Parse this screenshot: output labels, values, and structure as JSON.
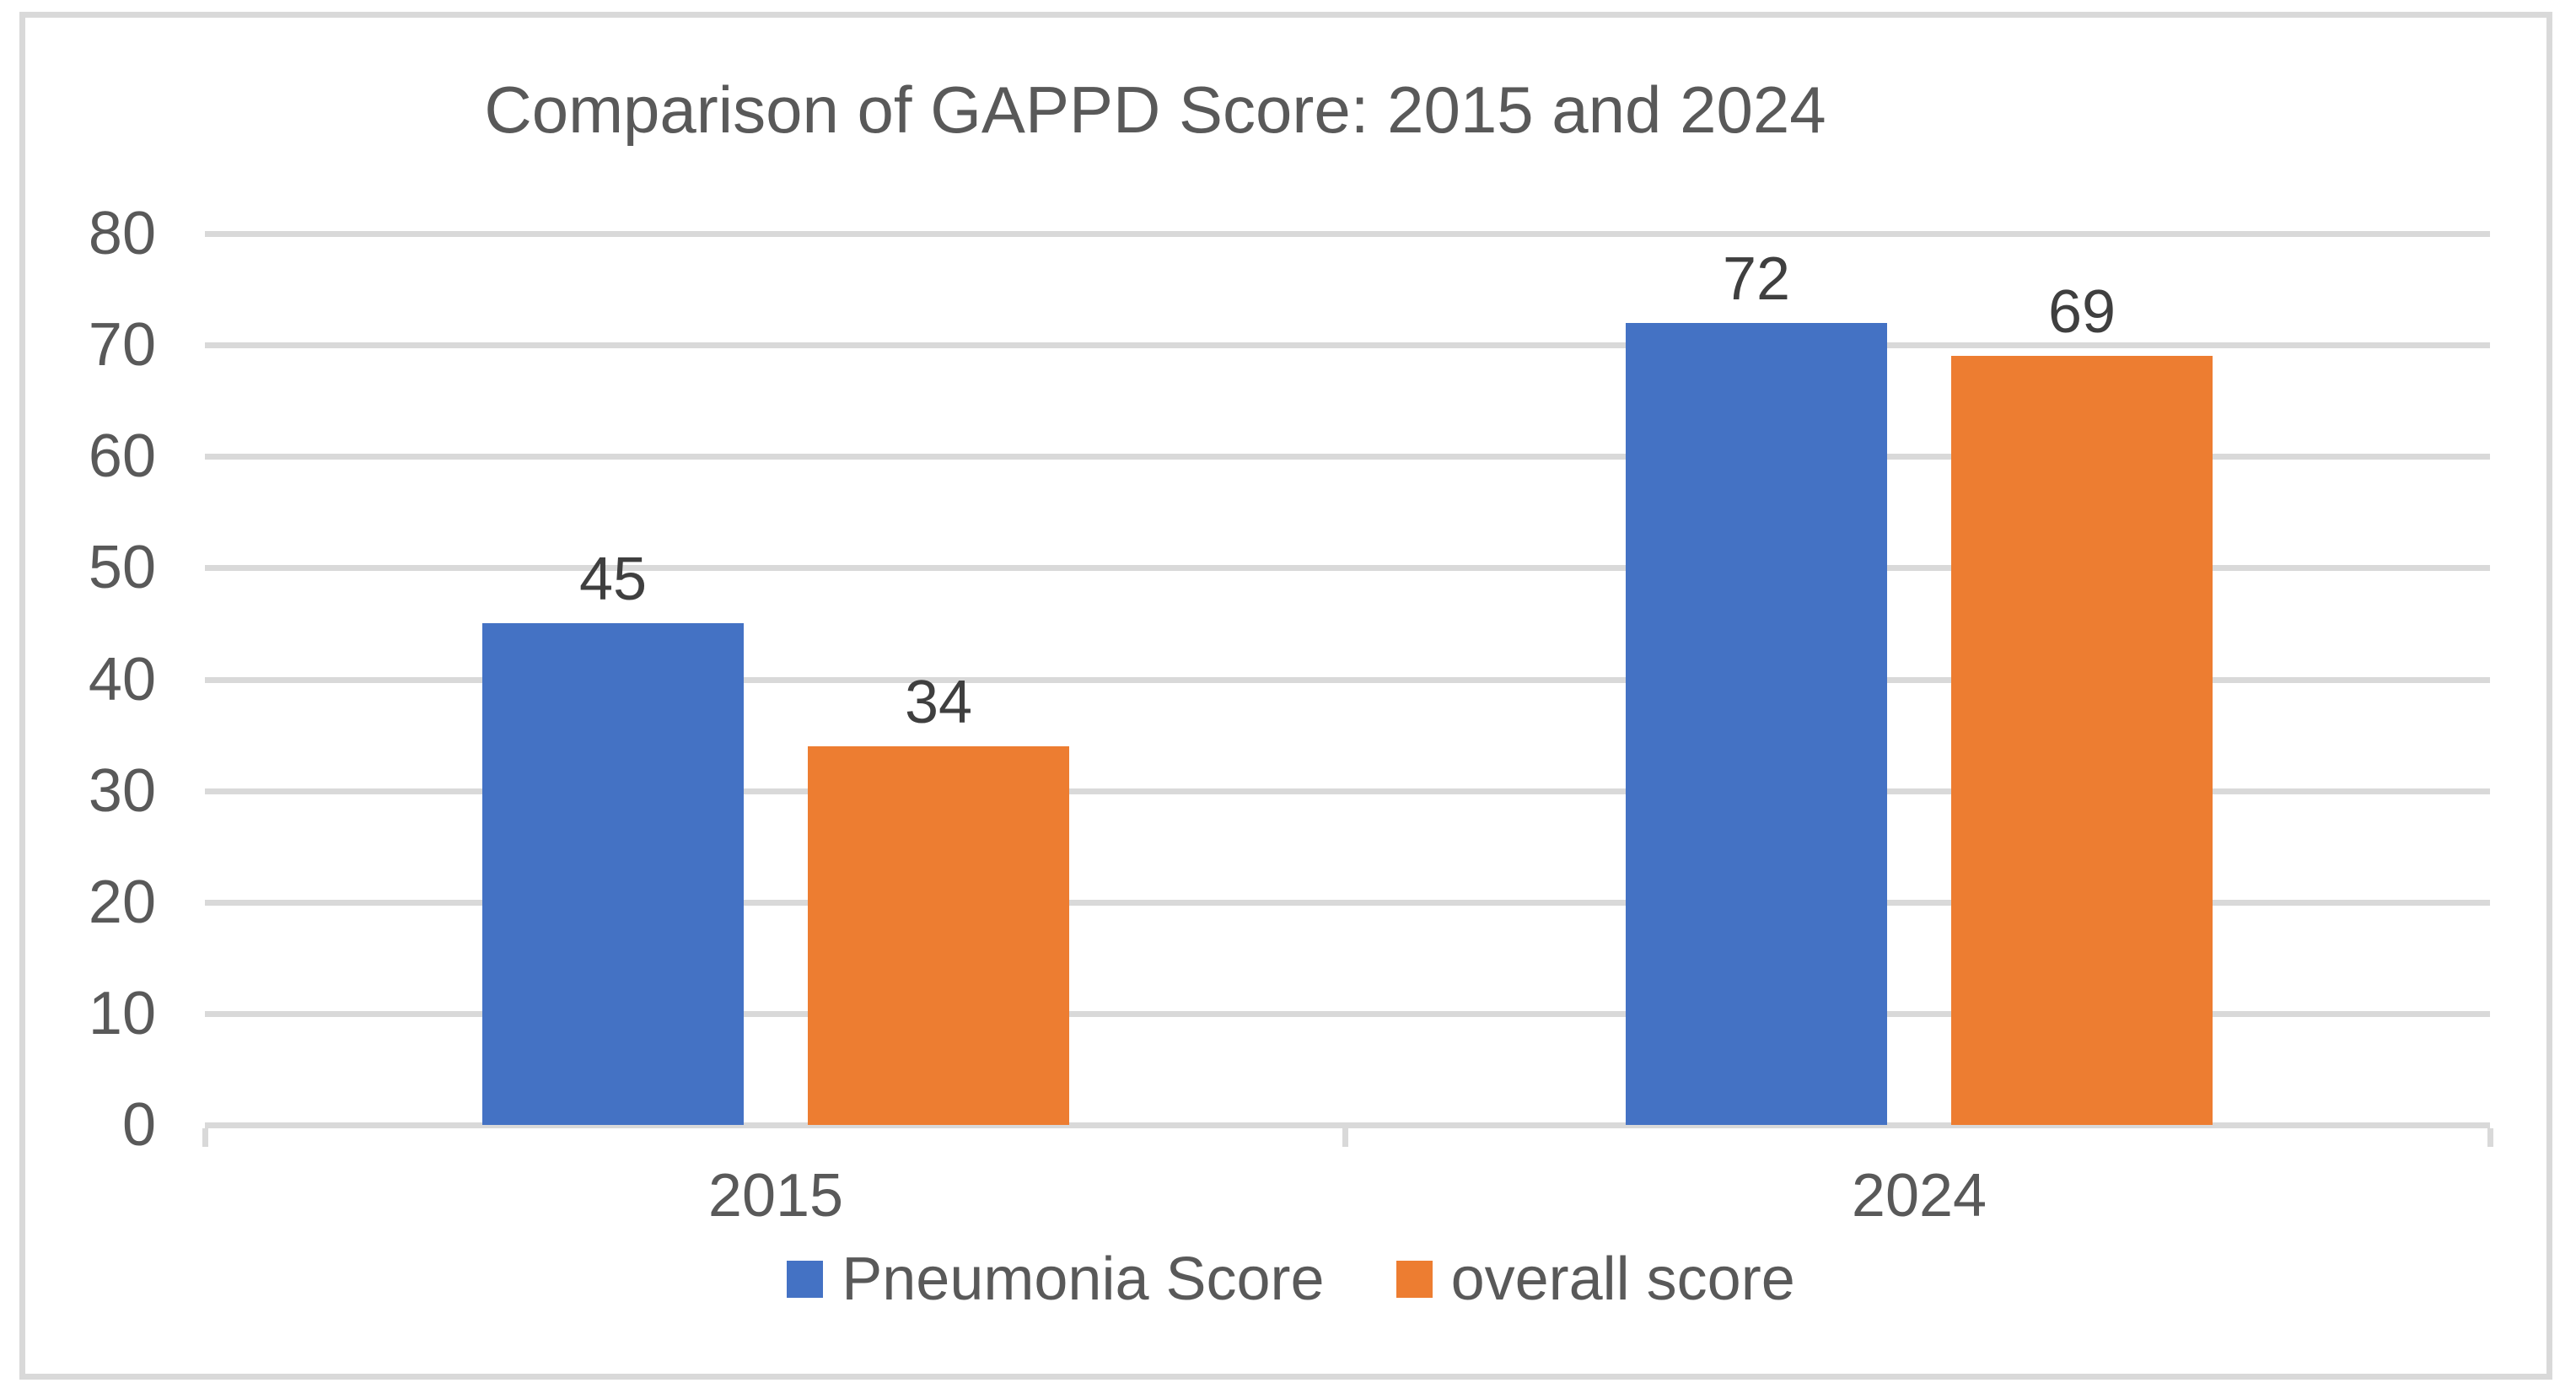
{
  "chart_data": {
    "type": "bar",
    "title": "Comparison of GAPPD Score: 2015 and 2024",
    "categories": [
      "2015",
      "2024"
    ],
    "series": [
      {
        "name": "Pneumonia Score",
        "color": "#4472C4",
        "values": [
          45,
          72
        ]
      },
      {
        "name": "overall score",
        "color": "#ED7D31",
        "values": [
          34,
          69
        ]
      }
    ],
    "data_labels": [
      [
        "45",
        "34"
      ],
      [
        "72",
        "69"
      ]
    ],
    "ylim": [
      0,
      80
    ],
    "yticks": [
      0,
      10,
      20,
      30,
      40,
      50,
      60,
      70,
      80
    ],
    "grid": "horizontal-on",
    "legend_position": "bottom",
    "colors": {
      "gridline": "#D9D9D9",
      "chart_border": "#D9D9D9",
      "axis_text": "#595959",
      "title_text": "#595959",
      "data_label_text": "#3F3F3F",
      "background": "#FFFFFF"
    }
  }
}
